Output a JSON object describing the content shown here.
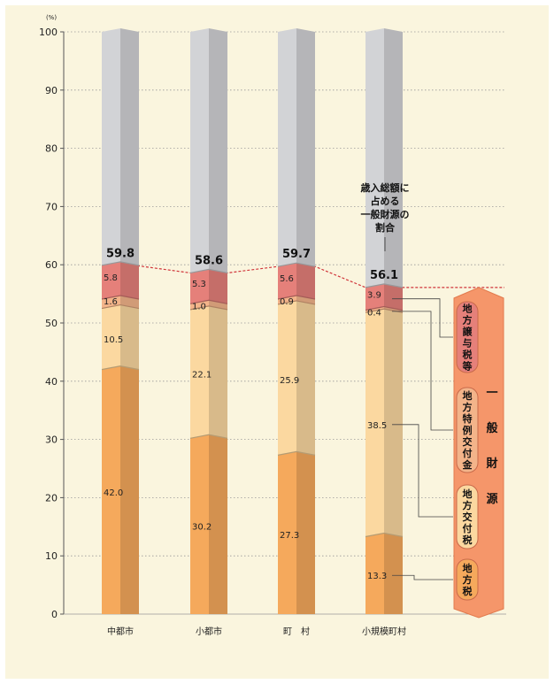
{
  "chart_data": {
    "type": "bar",
    "stacked": true,
    "y_unit": "(%)",
    "ylim": [
      0,
      100
    ],
    "yticks": [
      0,
      10,
      20,
      30,
      40,
      50,
      60,
      70,
      80,
      90,
      100
    ],
    "categories": [
      "中都市",
      "小都市",
      "町　村",
      "小規模町村"
    ],
    "series": [
      {
        "name": "地方税",
        "values": [
          42.0,
          30.2,
          27.3,
          13.3
        ],
        "labels": [
          "42.0",
          "30.2",
          "27.3",
          "13.3"
        ]
      },
      {
        "name": "地方交付税",
        "values": [
          10.5,
          22.1,
          25.9,
          38.5
        ],
        "labels": [
          "10.5",
          "22.1",
          "25.9",
          "38.5"
        ]
      },
      {
        "name": "地方特例交付金",
        "values": [
          1.6,
          1.0,
          0.9,
          0.4
        ],
        "labels": [
          "1.6",
          "1.0",
          "0.9",
          "0.4"
        ]
      },
      {
        "name": "地方譲与税等",
        "values": [
          5.8,
          5.3,
          5.6,
          3.9
        ],
        "labels": [
          "5.8",
          "5.3",
          "5.6",
          "3.9"
        ]
      }
    ],
    "totals": [
      59.8,
      58.6,
      59.7,
      56.1
    ],
    "total_labels": [
      "59.8",
      "58.6",
      "59.7",
      "56.1"
    ],
    "annotation": [
      "歳入総額に",
      "占める",
      "一般財源の",
      "割合"
    ],
    "group_label": [
      "一",
      "般",
      "財",
      "源"
    ],
    "grid": true,
    "colors": {
      "地方税": "#f5a95c",
      "地方交付税": "#fbd8a0",
      "地方特例交付金": "#f3b48a",
      "地方譲与税等": "#e5807a",
      "rest": "#d2d3d6",
      "group_band": "#f5966a"
    }
  }
}
